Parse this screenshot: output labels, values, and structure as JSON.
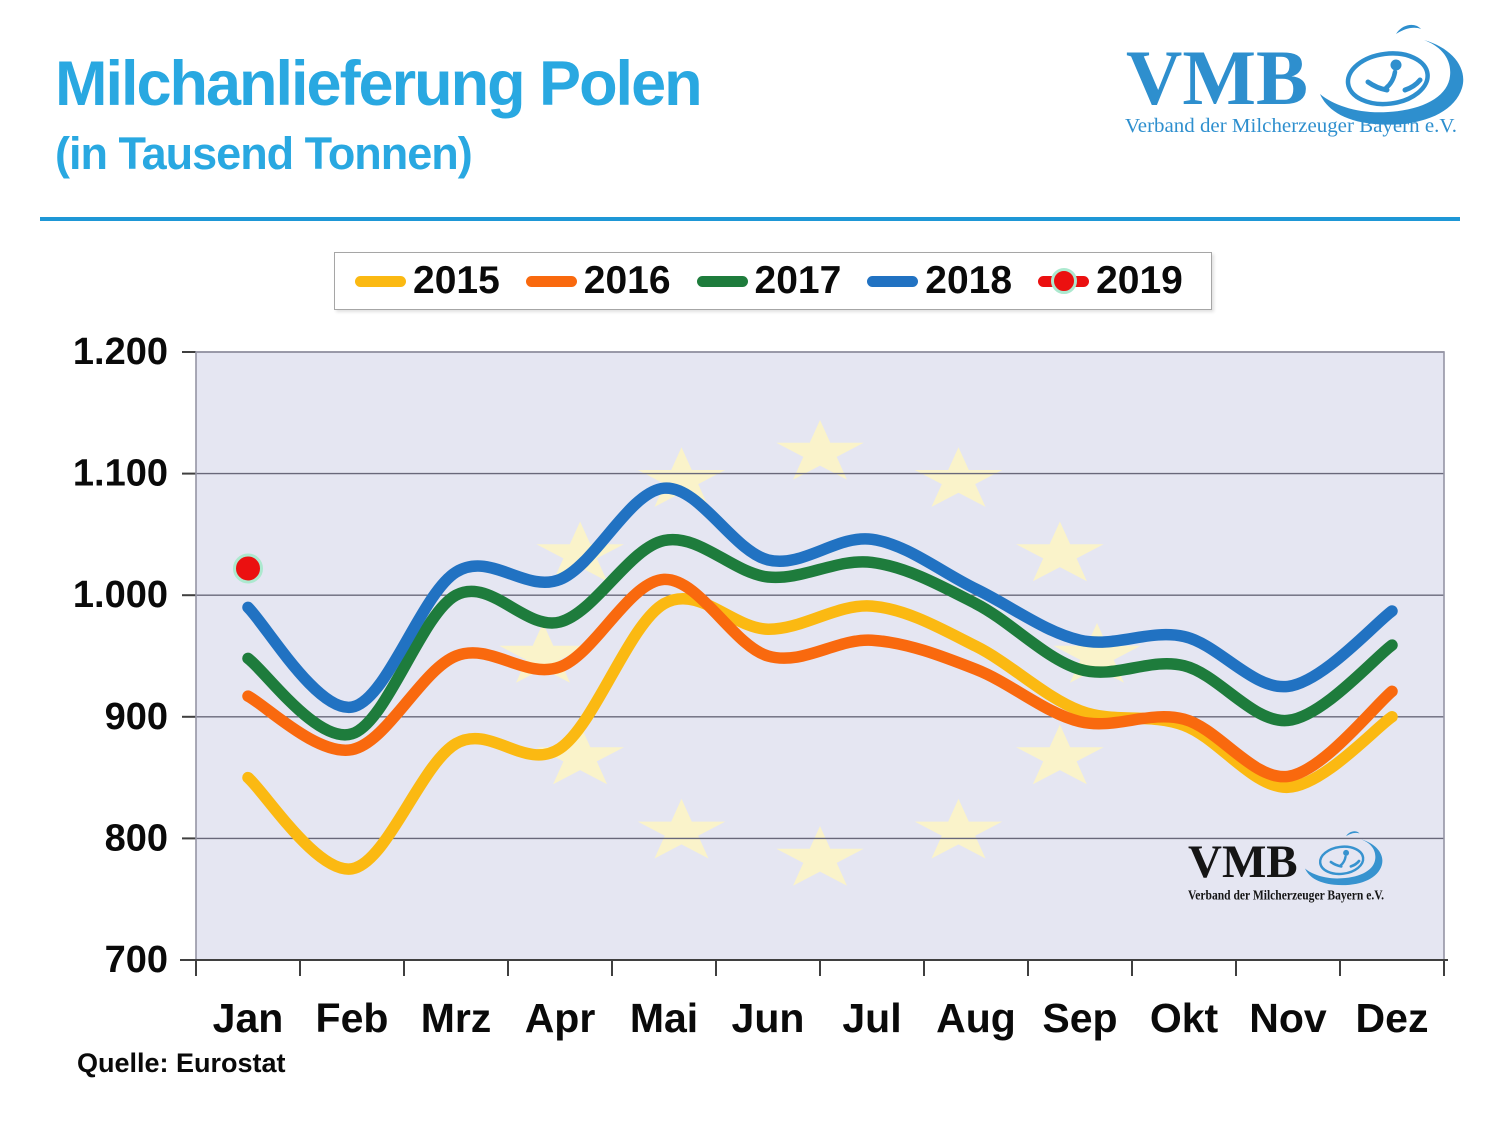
{
  "header": {
    "title": "Milchanlieferung Polen",
    "subtitle": "(in Tausend Tonnen)",
    "title_color": "#29A8E1",
    "divider_color": "#1E97D6"
  },
  "brand": {
    "name": "VMB",
    "tagline": "Verband der Milcherzeuger Bayern e.V.",
    "color": "#2E8FCE"
  },
  "source_note": "Quelle: Eurostat",
  "chart_data": {
    "type": "line",
    "title": "Milchanlieferung Polen (in Tausend Tonnen)",
    "categories": [
      "Jan",
      "Feb",
      "Mrz",
      "Apr",
      "Mai",
      "Jun",
      "Jul",
      "Aug",
      "Sep",
      "Okt",
      "Nov",
      "Dez"
    ],
    "series": [
      {
        "name": "2015",
        "color": "#FBB912",
        "values": [
          850,
          775,
          878,
          874,
          993,
          972,
          991,
          958,
          905,
          893,
          842,
          900
        ]
      },
      {
        "name": "2016",
        "color": "#F9690E",
        "values": [
          917,
          873,
          950,
          941,
          1013,
          950,
          963,
          939,
          896,
          898,
          851,
          921
        ]
      },
      {
        "name": "2017",
        "color": "#1E7C3C",
        "values": [
          948,
          886,
          1000,
          978,
          1045,
          1015,
          1027,
          993,
          939,
          942,
          897,
          959
        ]
      },
      {
        "name": "2018",
        "color": "#2172C2",
        "values": [
          990,
          908,
          1019,
          1013,
          1088,
          1029,
          1046,
          1005,
          963,
          966,
          925,
          987
        ]
      },
      {
        "name": "2019",
        "color": "#EB1010",
        "values": [
          1022
        ],
        "marker": "dot",
        "marker_ring": "#ACE9CF"
      }
    ],
    "ylim": [
      700,
      1200
    ],
    "ytick_step": 100,
    "ytick_labels": [
      "700",
      "800",
      "900",
      "1.000",
      "1.100",
      "1.200"
    ],
    "grid": true,
    "legend_position": "top",
    "smoothed_lines": true,
    "style": {
      "plot_bg": "#E5E6F2",
      "grid_color": "#68687A",
      "border_color": "#9595A5",
      "axis_color": "#3F3F3F",
      "label_color": "#0A0A0A",
      "star_color": "#FAF3CA",
      "line_width": 11.5
    }
  }
}
